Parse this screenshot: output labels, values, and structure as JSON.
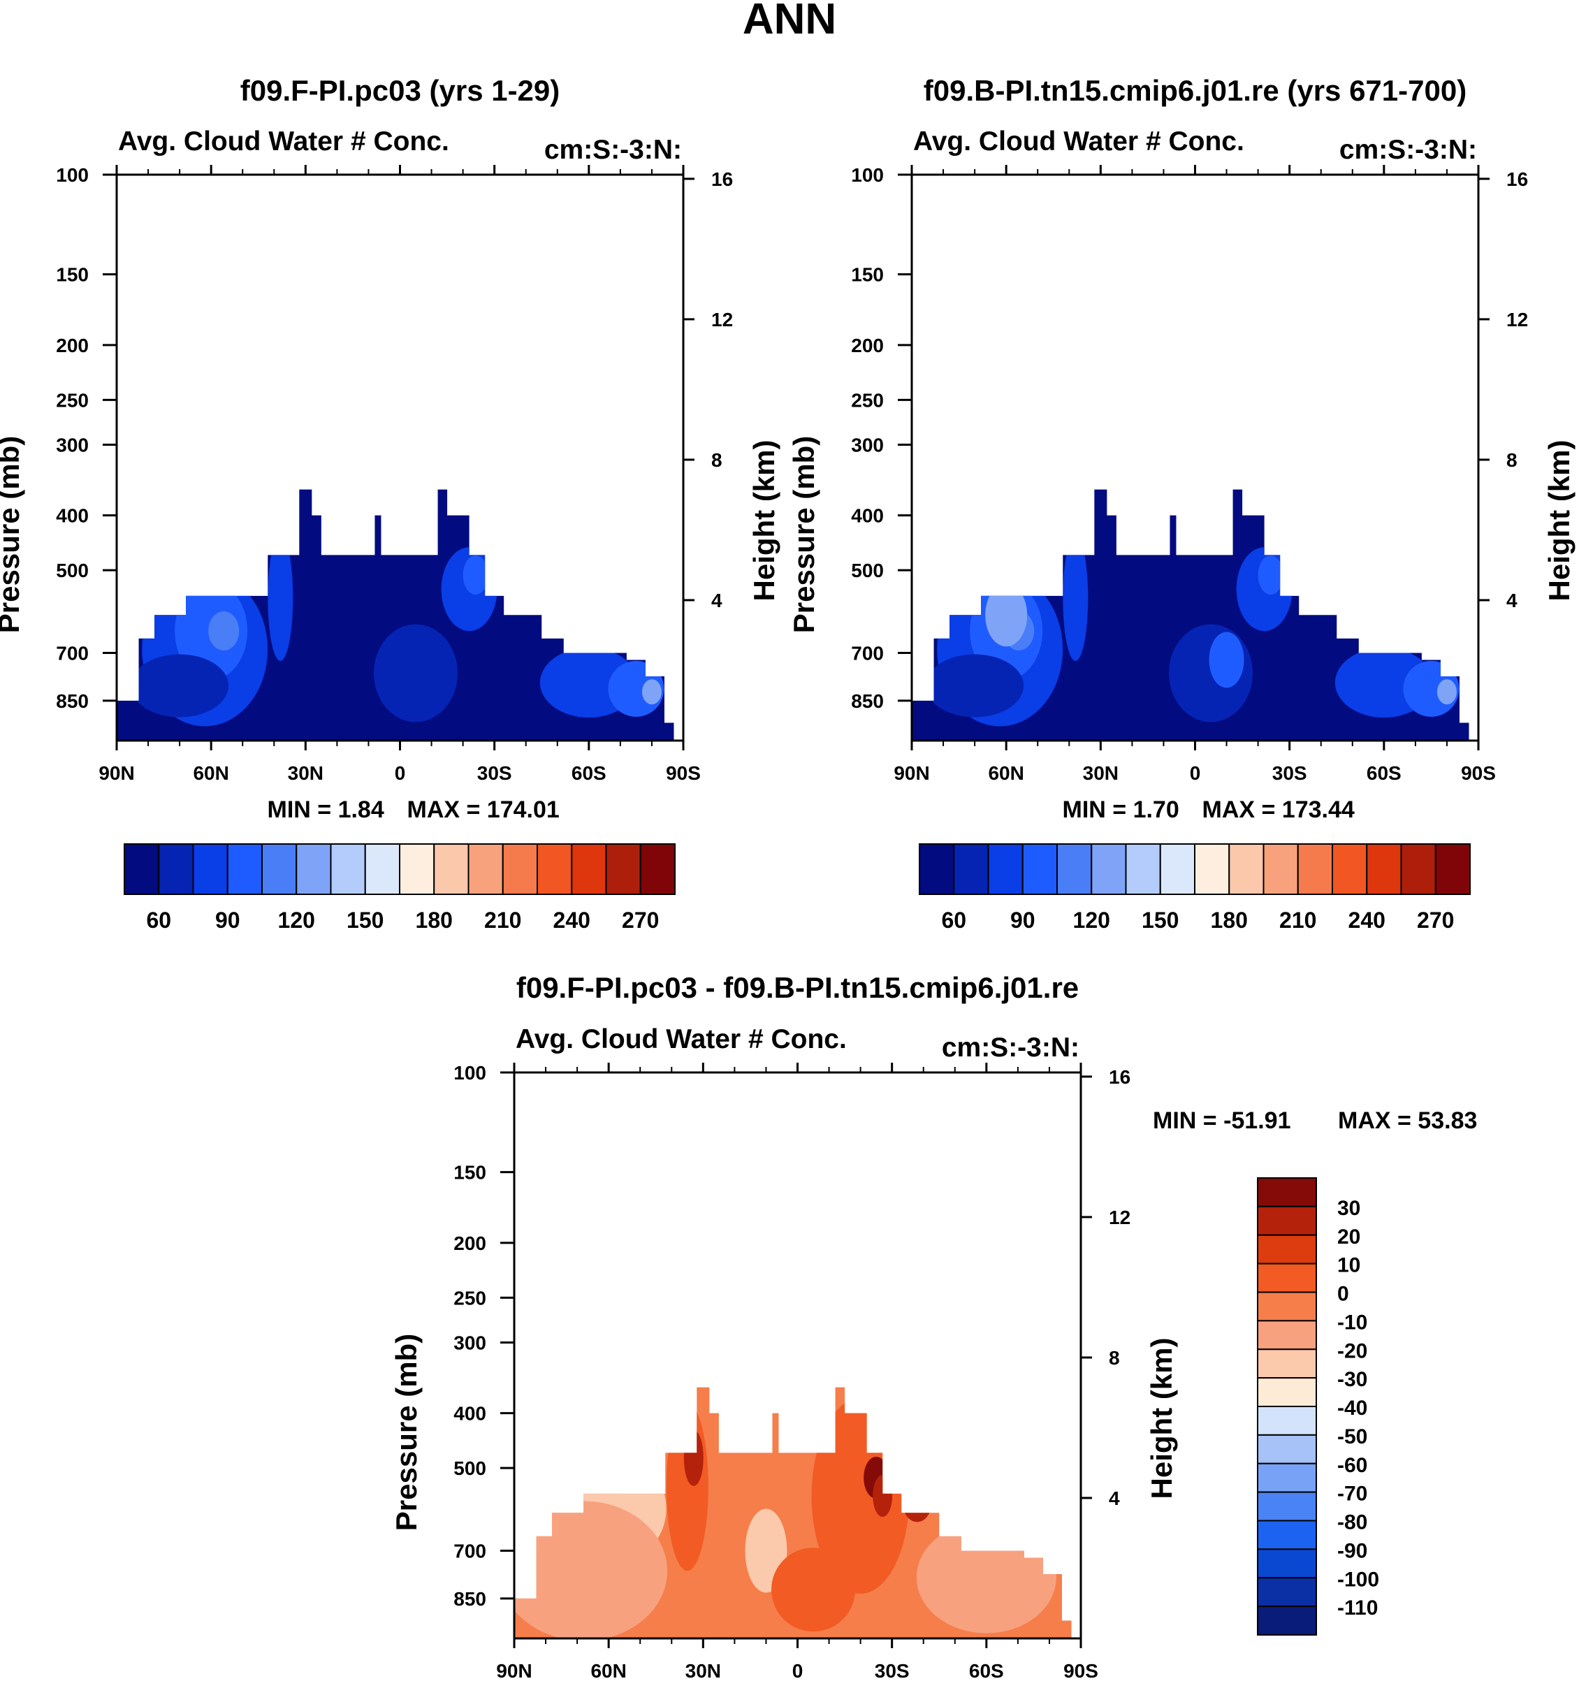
{
  "page": {
    "title": "ANN"
  },
  "colors": {
    "seq": [
      "#020b80",
      "#0524b4",
      "#0a3ee6",
      "#1f5cff",
      "#4a7ef6",
      "#7fa4f7",
      "#b3ccfb",
      "#dbe8fb",
      "#fdeee0",
      "#fbc8ac",
      "#f7a27c",
      "#f57b4d",
      "#f25623",
      "#de370d",
      "#ad1f0b",
      "#7f0508"
    ],
    "diff": [
      "#0a1c7a",
      "#0b2fa4",
      "#0b48d2",
      "#1c63f2",
      "#4a83f4",
      "#78a2f5",
      "#a6c2f7",
      "#d3e3fb",
      "#fdebd8",
      "#fbc9ab",
      "#f8a17f",
      "#f57e4b",
      "#f25b24",
      "#dd3c0e",
      "#b5220b",
      "#840b07"
    ]
  },
  "chart_data": [
    {
      "id": "panel-a",
      "type": "contour",
      "title": "f09.F-PI.pc03 (yrs 1-29)",
      "left_label": "Avg. Cloud Water # Conc.",
      "right_label": "cm:S:-3:N:",
      "ylabel": "Pressure (mb)",
      "ylabel_right": "Height (km)",
      "x_ticks": [
        "90N",
        "60N",
        "30N",
        "0",
        "30S",
        "60S",
        "90S"
      ],
      "x_values": [
        90,
        60,
        30,
        0,
        -30,
        -60,
        -90
      ],
      "y_ticks": [
        "100",
        "150",
        "200",
        "250",
        "300",
        "400",
        "500",
        "700",
        "850"
      ],
      "y_values": [
        100,
        150,
        200,
        250,
        300,
        400,
        500,
        700,
        850
      ],
      "ylim": [
        100,
        1000
      ],
      "y_right_ticks": [
        "16",
        "12",
        "8",
        "4"
      ],
      "y_right_values": [
        16,
        12,
        8,
        4
      ],
      "min_label": "MIN =   1.84",
      "max_label": "MAX = 174.01",
      "colorbar_labels": [
        "60",
        "90",
        "120",
        "150",
        "180",
        "210",
        "240",
        "270"
      ],
      "colorbar_levels": [
        45,
        60,
        75,
        90,
        105,
        120,
        135,
        150,
        165,
        180,
        195,
        210,
        225,
        240,
        255,
        270,
        285
      ],
      "field": "mostly deep blue (below 45) everywhere data exists; data region a stepped mound from surface up to ~350-450 mb between 30N and 20S"
    },
    {
      "id": "panel-b",
      "type": "contour",
      "title": "f09.B-PI.tn15.cmip6.j01.re (yrs 671-700)",
      "left_label": "Avg. Cloud Water # Conc.",
      "right_label": "cm:S:-3:N:",
      "ylabel": "Pressure (mb)",
      "ylabel_right": "Height (km)",
      "x_ticks": [
        "90N",
        "60N",
        "30N",
        "0",
        "30S",
        "60S",
        "90S"
      ],
      "x_values": [
        90,
        60,
        30,
        0,
        -30,
        -60,
        -90
      ],
      "y_ticks": [
        "100",
        "150",
        "200",
        "250",
        "300",
        "400",
        "500",
        "700",
        "850"
      ],
      "y_values": [
        100,
        150,
        200,
        250,
        300,
        400,
        500,
        700,
        850
      ],
      "ylim": [
        100,
        1000
      ],
      "y_right_ticks": [
        "16",
        "12",
        "8",
        "4"
      ],
      "y_right_values": [
        16,
        12,
        8,
        4
      ],
      "min_label": "MIN =   1.70",
      "max_label": "MAX = 173.44",
      "colorbar_labels": [
        "60",
        "90",
        "120",
        "150",
        "180",
        "210",
        "240",
        "270"
      ],
      "colorbar_levels": [
        45,
        60,
        75,
        90,
        105,
        120,
        135,
        150,
        165,
        180,
        195,
        210,
        225,
        240,
        255,
        270,
        285
      ],
      "field": "similar to panel A; deep blue mound with lighter blue pockets near 60N and 20-30S"
    },
    {
      "id": "panel-c",
      "type": "contour",
      "title": "f09.F-PI.pc03 - f09.B-PI.tn15.cmip6.j01.re",
      "left_label": "Avg. Cloud Water # Conc.",
      "right_label": "cm:S:-3:N:",
      "ylabel": "Pressure (mb)",
      "ylabel_right": "Height (km)",
      "x_ticks": [
        "90N",
        "60N",
        "30N",
        "0",
        "30S",
        "60S",
        "90S"
      ],
      "x_values": [
        90,
        60,
        30,
        0,
        -30,
        -60,
        -90
      ],
      "y_ticks": [
        "100",
        "150",
        "200",
        "250",
        "300",
        "400",
        "500",
        "700",
        "850"
      ],
      "y_values": [
        100,
        150,
        200,
        250,
        300,
        400,
        500,
        700,
        850
      ],
      "ylim": [
        100,
        1000
      ],
      "y_right_ticks": [
        "16",
        "12",
        "8",
        "4"
      ],
      "y_right_values": [
        16,
        12,
        8,
        4
      ],
      "min_label": "MIN = -51.91",
      "max_label": "MAX =  53.83",
      "colorbar_labels": [
        "30",
        "20",
        "10",
        "0",
        "-10",
        "-20",
        "-30",
        "-40",
        "-50",
        "-60",
        "-70",
        "-80",
        "-90",
        "-100",
        "-110"
      ],
      "field": "difference field mostly orange (-10 to 10), darker red spots near 30N and 20-30S at 400-500 mb"
    }
  ]
}
